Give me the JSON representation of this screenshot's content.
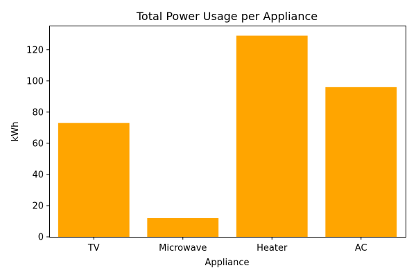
{
  "chart_data": {
    "type": "bar",
    "title": "Total Power Usage per Appliance",
    "xlabel": "Appliance",
    "ylabel": "kWh",
    "categories": [
      "TV",
      "Microwave",
      "Heater",
      "AC"
    ],
    "values": [
      73,
      12,
      129,
      96
    ],
    "ylim": [
      0,
      135.45
    ],
    "yticks": [
      0,
      20,
      40,
      60,
      80,
      100,
      120
    ],
    "bar_color": "#FFA500",
    "grid": false,
    "legend": "none"
  }
}
